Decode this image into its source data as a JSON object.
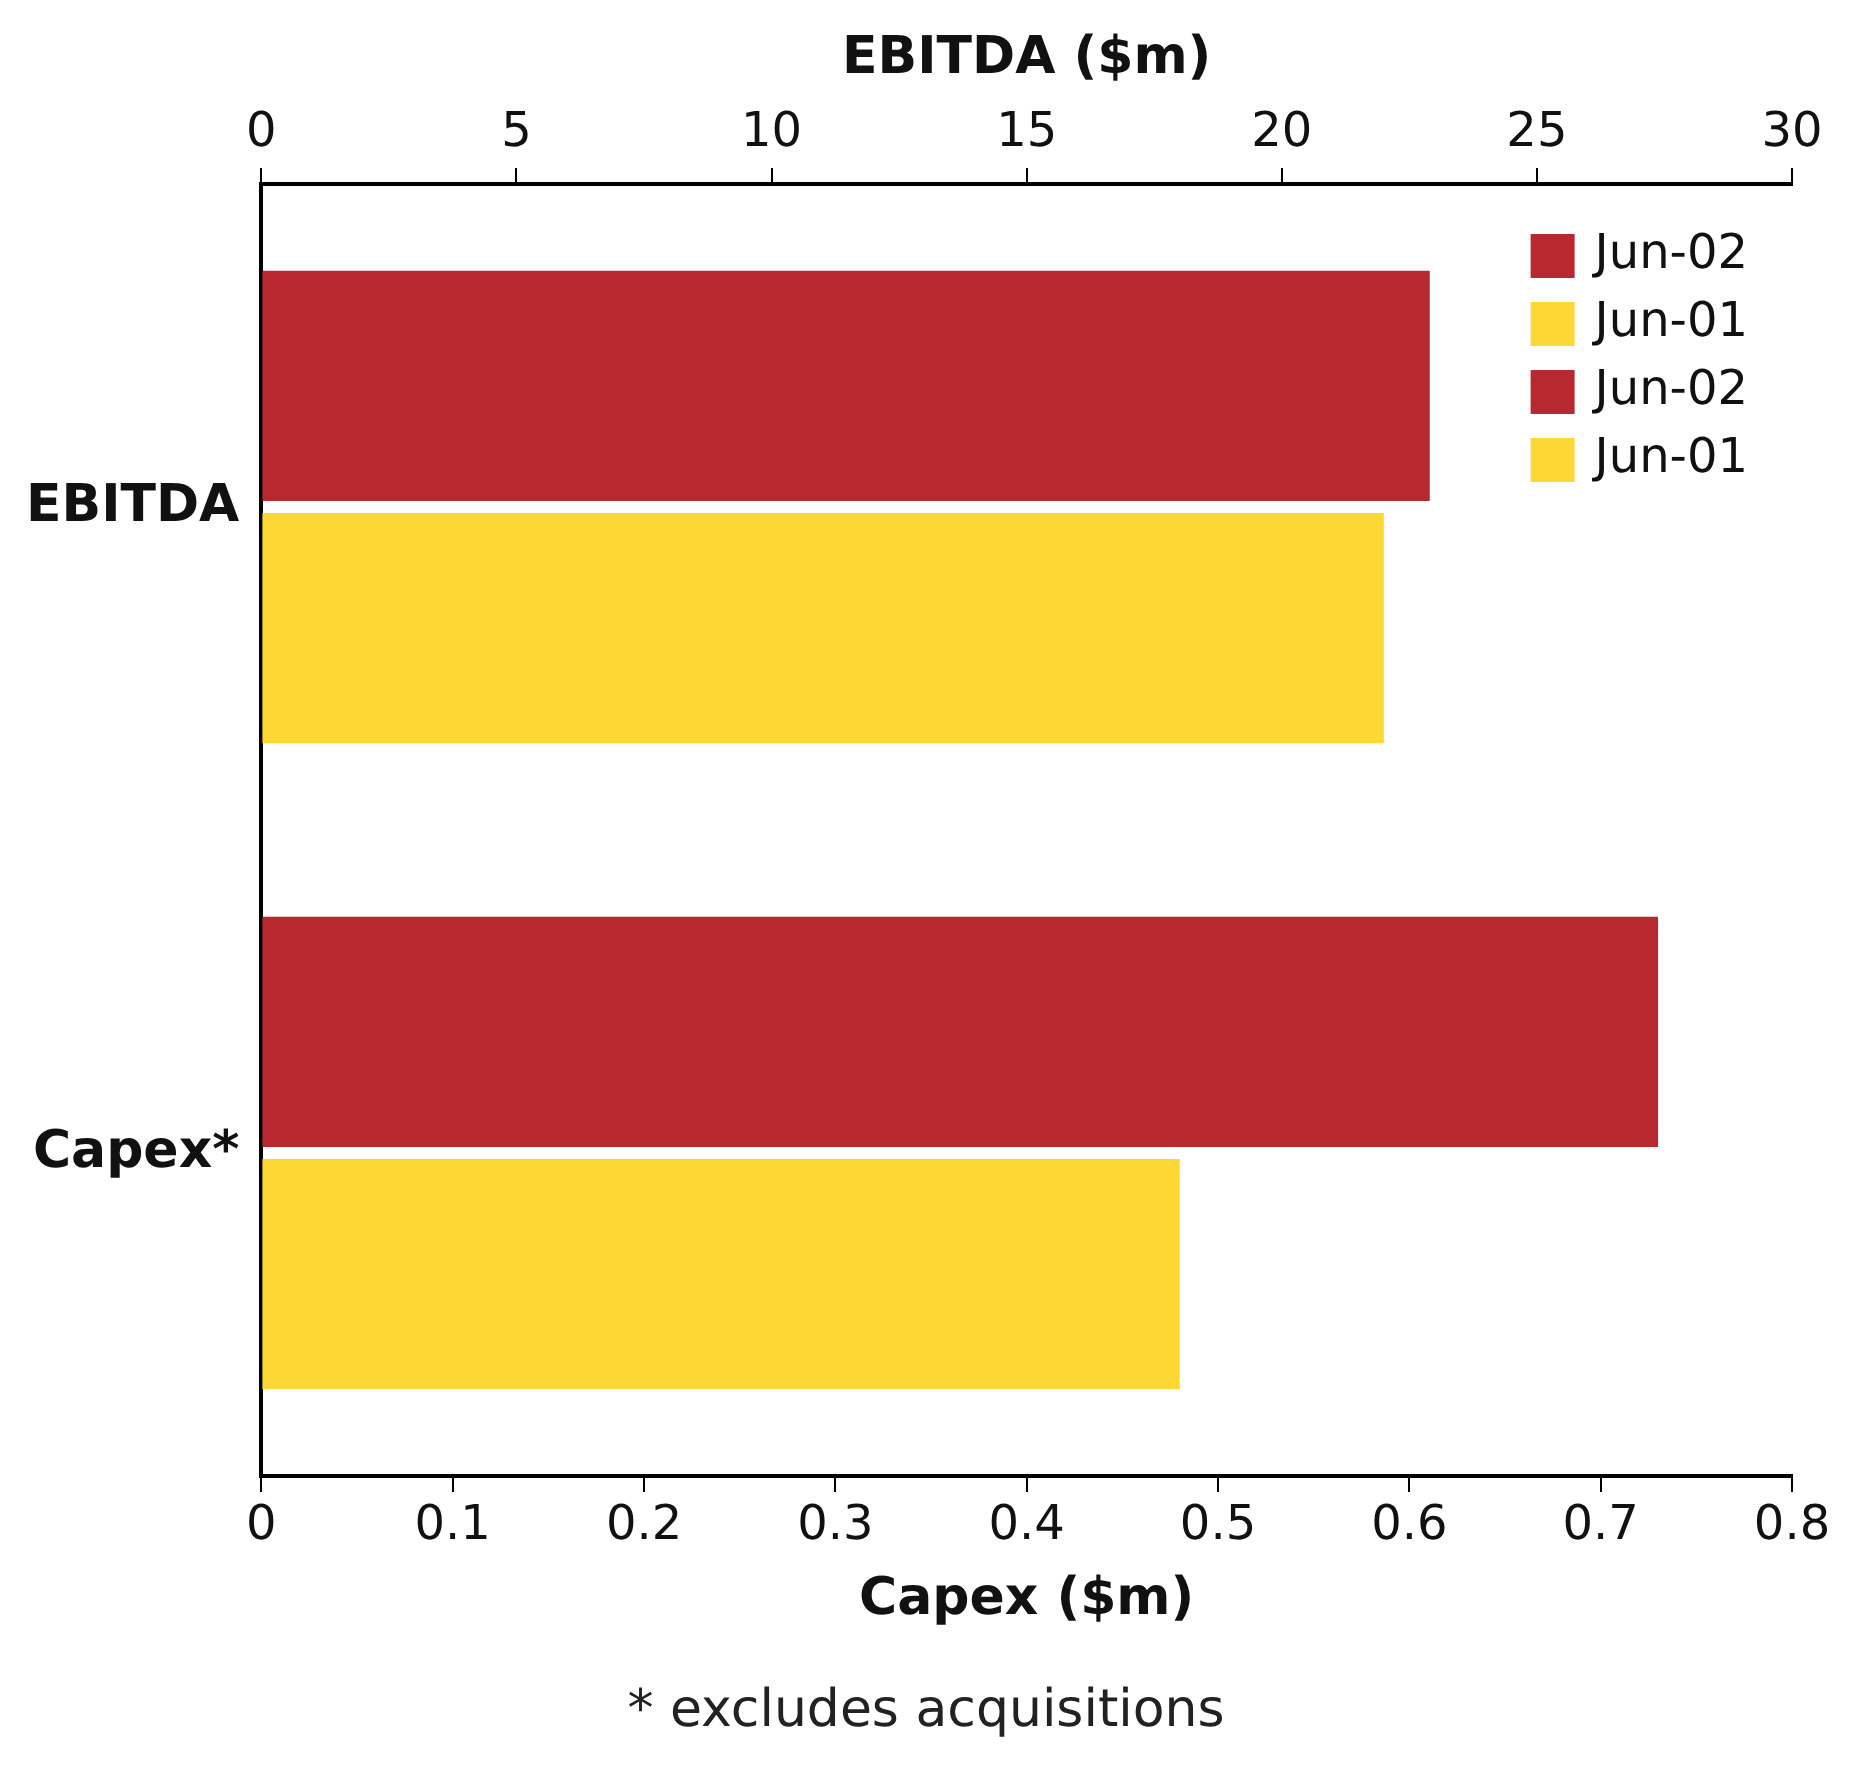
{
  "chart_data": {
    "type": "bar",
    "orientation": "horizontal",
    "categories": [
      "EBITDA",
      "Capex*"
    ],
    "series": [
      {
        "name": "Jun-02",
        "color": "#b8282f",
        "axis": "x2",
        "values": [
          22.9,
          null
        ]
      },
      {
        "name": "Jun-01",
        "color": "#fdd835",
        "axis": "x2",
        "values": [
          22.0,
          null
        ]
      },
      {
        "name": "Jun-02",
        "color": "#b8282f",
        "values": [
          null,
          0.73
        ]
      },
      {
        "name": "Jun-01",
        "color": "#fdd835",
        "values": [
          null,
          0.48
        ]
      }
    ],
    "xlabel": "Capex ($m)",
    "x2label": "EBITDA ($m)",
    "xlim": [
      0,
      0.8
    ],
    "xticks": [
      0,
      0.1,
      0.2,
      0.3,
      0.4,
      0.5,
      0.6,
      0.7,
      0.8
    ],
    "x2lim": [
      0,
      30
    ],
    "x2ticks": [
      0,
      5,
      10,
      15,
      20,
      25,
      30
    ],
    "annotations": [
      "* excludes acquisitions"
    ],
    "legend": "top right",
    "grid": false
  }
}
